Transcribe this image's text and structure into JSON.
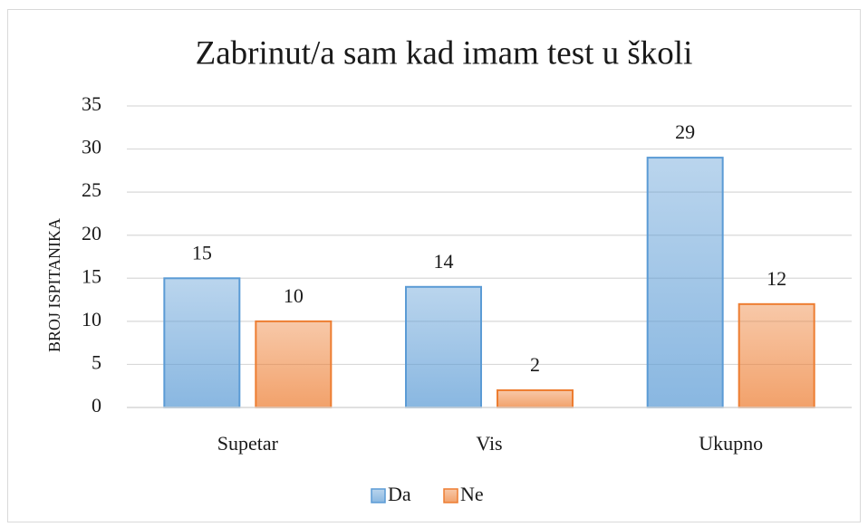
{
  "chart_data": {
    "type": "bar",
    "title": "Zabrinut/a  sam kad imam test u školi",
    "y_axis_label": "BROJ ISPITANIKA",
    "categories": [
      "Supetar",
      "Vis",
      "Ukupno"
    ],
    "series": [
      {
        "name": "Da",
        "color": "#5b9bd5",
        "values": [
          15,
          14,
          29
        ]
      },
      {
        "name": "Ne",
        "color": "#ed7d31",
        "values": [
          10,
          2,
          12
        ]
      }
    ],
    "ylim": [
      0,
      35
    ],
    "yticks": [
      0,
      5,
      10,
      15,
      20,
      25,
      30,
      35
    ],
    "grid": true,
    "legend": "bottom"
  }
}
